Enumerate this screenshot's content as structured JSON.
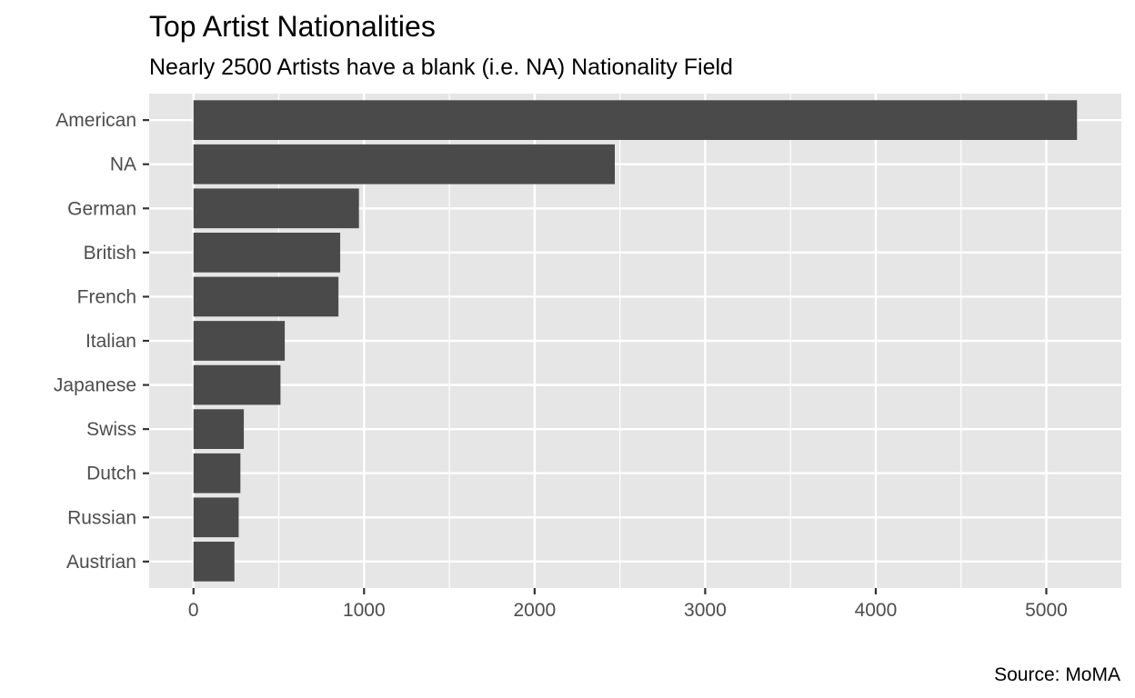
{
  "chart_data": {
    "type": "bar",
    "orientation": "horizontal",
    "title": "Top Artist Nationalities",
    "subtitle": "Nearly 2500 Artists have a blank (i.e. NA) Nationality Field",
    "caption": "Source: MoMA",
    "xlabel": "",
    "ylabel": "",
    "categories": [
      "American",
      "NA",
      "German",
      "British",
      "French",
      "Italian",
      "Japanese",
      "Swiss",
      "Dutch",
      "Russian",
      "Austrian"
    ],
    "values": [
      5180,
      2470,
      970,
      860,
      850,
      535,
      510,
      295,
      275,
      265,
      240
    ],
    "x_ticks": [
      0,
      1000,
      2000,
      3000,
      4000,
      5000
    ],
    "xlim": [
      -260,
      5440
    ],
    "grid": true,
    "legend": "none",
    "colors": {
      "bar": "#4a4a4a",
      "panel": "#e6e6e6",
      "grid": "#ffffff"
    }
  }
}
